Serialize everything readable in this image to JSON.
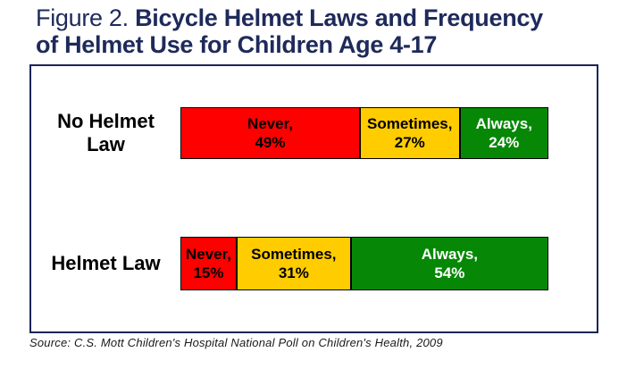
{
  "title": {
    "prefix": "Figure 2. ",
    "line1_bold": "Bicycle Helmet Laws and Frequency",
    "line2_bold": "of Helmet Use for Children Age 4-17"
  },
  "source": "Source: C.S. Mott Children's Hospital National Poll on Children's Health, 2009",
  "colors": {
    "never": "#ff0000",
    "sometimes": "#ffcc00",
    "always": "#068806",
    "title_navy": "#1e2a5a",
    "box_border_navy": "#1b2556",
    "segment_text_dark": "#000000",
    "segment_text_light": "#ffffff"
  },
  "chart_data": {
    "type": "bar",
    "orientation": "horizontal-stacked",
    "title": "Figure 2. Bicycle Helmet Laws and Frequency of Helmet Use for Children Age 4-17",
    "categories": [
      "No Helmet Law",
      "Helmet Law"
    ],
    "series": [
      {
        "name": "Never",
        "values": [
          49,
          15
        ],
        "color": "#ff0000"
      },
      {
        "name": "Sometimes",
        "values": [
          27,
          31
        ],
        "color": "#ffcc00"
      },
      {
        "name": "Always",
        "values": [
          24,
          54
        ],
        "color": "#068806"
      }
    ],
    "value_unit": "%",
    "xlim": [
      0,
      100
    ],
    "grid": false,
    "legend": "none — labels printed inside segments",
    "source": "Source: C.S. Mott Children's Hospital National Poll on Children's Health, 2009"
  },
  "bars": [
    {
      "label": "No Helmet\nLaw",
      "segments": [
        {
          "line1": "Never,",
          "line2": "49%",
          "value": 49,
          "color": "#ff0000",
          "text_color": "#000000"
        },
        {
          "line1": "Sometimes,",
          "line2": "27%",
          "value": 27,
          "color": "#ffcc00",
          "text_color": "#000000"
        },
        {
          "line1": "Always,",
          "line2": "24%",
          "value": 24,
          "color": "#068806",
          "text_color": "#ffffff"
        }
      ]
    },
    {
      "label": "Helmet Law",
      "segments": [
        {
          "line1": "Never,",
          "line2": "15%",
          "value": 15,
          "color": "#ff0000",
          "text_color": "#000000"
        },
        {
          "line1": "Sometimes,",
          "line2": "31%",
          "value": 31,
          "color": "#ffcc00",
          "text_color": "#000000"
        },
        {
          "line1": "Always,",
          "line2": "54%",
          "value": 54,
          "color": "#068806",
          "text_color": "#ffffff"
        }
      ]
    }
  ]
}
